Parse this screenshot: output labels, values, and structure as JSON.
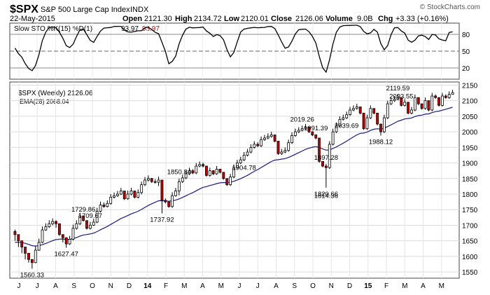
{
  "header": {
    "symbol": "$SPX",
    "name": "S&P 500 Large Cap Index",
    "exchange": "INDX",
    "date": "22-May-2015",
    "open_label": "Open",
    "open": "2121.30",
    "high_label": "High",
    "high": "2134.72",
    "low_label": "Low",
    "low": "2120.01",
    "close_label": "Close",
    "close": "2126.06",
    "volume_label": "Volume",
    "volume": "9.0B",
    "chg_label": "Chg",
    "chg": "+3.33 (+0.16%)",
    "brand": "© StockCharts.com",
    "chg_color": "#000000"
  },
  "indicator": {
    "label": "Slow STO %K(15) %D(1)",
    "k_value": "93.97",
    "d_value": "93.97",
    "d_color": "#cc0000",
    "ylim": [
      0,
      100
    ],
    "ticks": [
      "80",
      "50",
      "20"
    ],
    "tick_values": [
      80,
      50,
      20
    ]
  },
  "price": {
    "legend_symbol": "$SPX (Weekly) 2126.06",
    "legend_ema": "EMA(28) 2068.04",
    "up_color": "#ffffff",
    "down_color": "#cc0000",
    "ema_color": "#1a1a80"
  },
  "chart_data": {
    "type": "candlestick",
    "title": "$SPX S&P 500 Large Cap Index INDX",
    "ylim": [
      1530,
      2160
    ],
    "yticks": [
      "2150",
      "2100",
      "2050",
      "2000",
      "1950",
      "1900",
      "1850",
      "1800",
      "1750",
      "1700",
      "1650",
      "1600",
      "1550"
    ],
    "ytick_values": [
      2150,
      2100,
      2050,
      2000,
      1950,
      1900,
      1850,
      1800,
      1750,
      1700,
      1650,
      1600,
      1550
    ],
    "xticks": [
      "J",
      "J",
      "A",
      "S",
      "O",
      "N",
      "D",
      "14",
      "F",
      "M",
      "A",
      "M",
      "J",
      "J",
      "A",
      "S",
      "O",
      "N",
      "D",
      "15",
      "F",
      "M",
      "A",
      "M"
    ],
    "close": [
      1670,
      1650,
      1630,
      1610,
      1590,
      1580,
      1620,
      1645,
      1685,
      1695,
      1705,
      1712,
      1705,
      1670,
      1660,
      1640,
      1655,
      1690,
      1705,
      1730,
      1715,
      1690,
      1700,
      1710,
      1745,
      1765,
      1760,
      1770,
      1790,
      1795,
      1800,
      1810,
      1785,
      1800,
      1810,
      1790,
      1805,
      1830,
      1845,
      1850,
      1840,
      1838,
      1845,
      1780,
      1775,
      1760,
      1795,
      1810,
      1840,
      1852,
      1865,
      1875,
      1868,
      1890,
      1895,
      1890,
      1860,
      1875,
      1865,
      1880,
      1870,
      1850,
      1830,
      1855,
      1885,
      1900,
      1910,
      1925,
      1935,
      1950,
      1960,
      1955,
      1975,
      1980,
      1985,
      1990,
      1970,
      1930,
      1935,
      1940,
      1965,
      1988,
      2000,
      2005,
      2010,
      2015,
      2000,
      1990,
      1980,
      1905,
      1890,
      1885,
      1960,
      2000,
      2020,
      2040,
      2045,
      2055,
      2070,
      2075,
      2080,
      2060,
      2010,
      2045,
      2075,
      2060,
      2025,
      2000,
      2045,
      2090,
      2100,
      2105,
      2110,
      2085,
      2095,
      2060,
      2070,
      2110,
      2090,
      2075,
      2100,
      2070,
      2115,
      2110,
      2085,
      2115,
      2110,
      2120,
      2126
    ],
    "high": [
      1686,
      1662,
      1642,
      1622,
      1601,
      1591,
      1632,
      1657,
      1696,
      1706,
      1716,
      1722,
      1716,
      1684,
      1671,
      1651,
      1666,
      1702,
      1716,
      1740,
      1728,
      1704,
      1711,
      1721,
      1756,
      1776,
      1773,
      1780,
      1800,
      1805,
      1810,
      1820,
      1798,
      1811,
      1820,
      1802,
      1815,
      1840,
      1855,
      1860,
      1852,
      1848,
      1856,
      1796,
      1786,
      1772,
      1806,
      1820,
      1850,
      1862,
      1875,
      1885,
      1880,
      1900,
      1905,
      1901,
      1872,
      1885,
      1877,
      1890,
      1881,
      1862,
      1842,
      1865,
      1895,
      1910,
      1920,
      1935,
      1945,
      1960,
      1970,
      1967,
      1985,
      1990,
      1995,
      2000,
      1982,
      1942,
      1945,
      1950,
      1975,
      1998,
      2010,
      2015,
      2020,
      2025,
      2012,
      2002,
      1992,
      1919,
      1902,
      1897,
      1970,
      2010,
      2030,
      2050,
      2055,
      2065,
      2080,
      2085,
      2090,
      2072,
      2022,
      2055,
      2085,
      2072,
      2037,
      2012,
      2055,
      2100,
      2110,
      2115,
      2120,
      2097,
      2105,
      2072,
      2080,
      2120,
      2102,
      2087,
      2110,
      2082,
      2125,
      2120,
      2097,
      2125,
      2120,
      2130,
      2134.72
    ],
    "low": [
      1650,
      1630,
      1610,
      1590,
      1580,
      1560.33,
      1578,
      1618,
      1642,
      1682,
      1692,
      1700,
      1692,
      1666,
      1645,
      1627.47,
      1637,
      1651,
      1686,
      1701,
      1712,
      1686,
      1686,
      1698,
      1707,
      1741,
      1756,
      1757,
      1766,
      1786,
      1791,
      1797,
      1781,
      1782,
      1796,
      1786,
      1786,
      1799,
      1826,
      1840,
      1836,
      1834,
      1826,
      1737.92,
      1770,
      1756,
      1756,
      1792,
      1796,
      1836,
      1848,
      1861,
      1864,
      1864,
      1886,
      1886,
      1856,
      1856,
      1861,
      1862,
      1866,
      1846,
      1826,
      1826,
      1851,
      1881,
      1896,
      1906,
      1921,
      1931,
      1946,
      1951,
      1951,
      1971,
      1976,
      1981,
      1966,
      1926,
      1926,
      1931,
      1936,
      1961,
      1984,
      1996,
      2001,
      2006,
      1996,
      1986,
      1976,
      1901,
      1886,
      1820.66,
      1881,
      1956,
      1996,
      2016,
      2036,
      2041,
      2051,
      2066,
      2071,
      2056,
      2006,
      2006,
      2041,
      2056,
      2021,
      1988.12,
      1996,
      2041,
      2086,
      2096,
      2101,
      2081,
      2081,
      2056,
      2056,
      2066,
      2086,
      2071,
      2071,
      2066,
      2066,
      2106,
      2081,
      2081,
      2106,
      2106,
      2120.01
    ],
    "labels": [
      {
        "text": "1560.33",
        "value": 1560.33,
        "pos": "below"
      },
      {
        "text": "1709.67",
        "value": 1709.67,
        "pos": "above"
      },
      {
        "text": "1627.47",
        "value": 1627.47,
        "pos": "below"
      },
      {
        "text": "1729.86",
        "value": 1729.86,
        "pos": "above"
      },
      {
        "text": "1850.84",
        "value": 1850.84,
        "pos": "above"
      },
      {
        "text": "1737.92",
        "value": 1737.92,
        "pos": "below"
      },
      {
        "text": "1897.28",
        "value": 1897.28,
        "pos": "above"
      },
      {
        "text": "1814.36",
        "value": 1814.36,
        "pos": "below"
      },
      {
        "text": "1991.39",
        "value": 1991.39,
        "pos": "above"
      },
      {
        "text": "1904.78",
        "value": 1904.78,
        "pos": "below"
      },
      {
        "text": "2019.26",
        "value": 2019.26,
        "pos": "above"
      },
      {
        "text": "1820.66",
        "value": 1820.66,
        "pos": "below"
      },
      {
        "text": "2093.55",
        "value": 2093.55,
        "pos": "above"
      },
      {
        "text": "1988.12",
        "value": 1988.12,
        "pos": "below"
      },
      {
        "text": "2119.59",
        "value": 2119.59,
        "pos": "above"
      },
      {
        "text": "2039.69",
        "value": 2039.69,
        "pos": "below"
      }
    ],
    "series": [
      {
        "name": "EMA(28)"
      },
      {
        "name": "%K(15)"
      }
    ],
    "grid": true
  }
}
